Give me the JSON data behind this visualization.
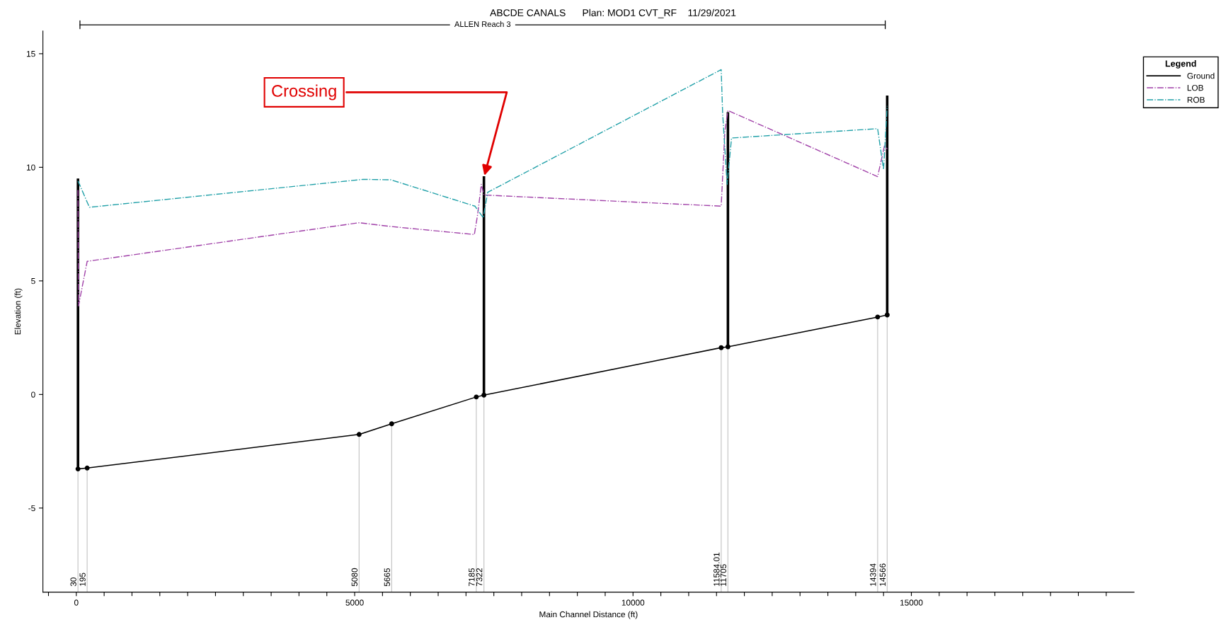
{
  "chart_data": {
    "type": "line",
    "title": "ABCDE CANALS      Plan: MOD1 CVT_RF    11/29/2021",
    "xlabel": "Main Channel Distance (ft)",
    "ylabel": "Elevation (ft)",
    "legend_title": "Legend",
    "legend": "top right",
    "grid": false,
    "xlim": [
      -600,
      19000
    ],
    "ylim": [
      -8.7,
      16
    ],
    "xticks": [
      {
        "value": -500,
        "label": null
      },
      0,
      {
        "value": 500,
        "label": null
      },
      {
        "value": 1000,
        "label": null
      },
      {
        "value": 1500,
        "label": null
      },
      {
        "value": 2000,
        "label": null
      },
      {
        "value": 2500,
        "label": null
      },
      {
        "value": 3000,
        "label": null
      },
      {
        "value": 3500,
        "label": null
      },
      {
        "value": 4000,
        "label": null
      },
      {
        "value": 4500,
        "label": null
      },
      5000,
      {
        "value": 5500,
        "label": null
      },
      {
        "value": 6000,
        "label": null
      },
      {
        "value": 6500,
        "label": null
      },
      {
        "value": 7000,
        "label": null
      },
      {
        "value": 7500,
        "label": null
      },
      {
        "value": 8000,
        "label": null
      },
      {
        "value": 8500,
        "label": null
      },
      {
        "value": 9000,
        "label": null
      },
      {
        "value": 9500,
        "label": null
      },
      10000,
      {
        "value": 10500,
        "label": null
      },
      {
        "value": 11000,
        "label": null
      },
      {
        "value": 11500,
        "label": null
      },
      {
        "value": 12000,
        "label": null
      },
      {
        "value": 12500,
        "label": null
      },
      {
        "value": 13000,
        "label": null
      },
      {
        "value": 13500,
        "label": null
      },
      {
        "value": 14000,
        "label": null
      },
      {
        "value": 14500,
        "label": null
      },
      15000,
      {
        "value": 15500,
        "label": null
      },
      {
        "value": 16000,
        "label": null
      },
      {
        "value": 16500,
        "label": null
      },
      {
        "value": 17000,
        "label": null
      },
      {
        "value": 17500,
        "label": null
      },
      {
        "value": 18000,
        "label": null
      },
      {
        "value": 18500,
        "label": null
      }
    ],
    "yticks": [
      -5,
      0,
      5,
      10,
      15
    ],
    "series": [
      {
        "name": "Ground",
        "color": "#000000",
        "marker": "circle",
        "line_style": "solid",
        "x": [
          30,
          195,
          5080,
          5665,
          7185,
          7322,
          11584.01,
          11705,
          14394,
          14566
        ],
        "values": [
          -3.28,
          -3.24,
          -1.76,
          -1.29,
          -0.11,
          -0.03,
          2.06,
          2.1,
          3.41,
          3.5
        ]
      },
      {
        "color": "#000000",
        "marker": "none",
        "line_style": "solid",
        "x": [
          30,
          30,
          null,
          7322,
          7322,
          null,
          11705,
          11705,
          null,
          14566,
          14566
        ],
        "values": [
          -3.28,
          9.45,
          null,
          -0.03,
          9.55,
          null,
          2.1,
          12.37,
          null,
          3.5,
          13.1
        ]
      },
      {
        "name": "LOB",
        "color": "#a040a8",
        "marker": "none",
        "line_style": "dashdot",
        "x": [
          30,
          40,
          195,
          5080,
          5665,
          7150,
          7210,
          7275,
          7322,
          11584.01,
          11650,
          11705,
          14394,
          14520,
          14566
        ],
        "values": [
          9.0,
          3.9,
          5.86,
          7.56,
          7.39,
          7.04,
          7.94,
          9.25,
          8.78,
          8.29,
          11.6,
          12.5,
          9.59,
          10.98,
          10.8
        ]
      },
      {
        "name": "ROB",
        "color": "#20a0a8",
        "marker": "none",
        "line_style": "dashdot",
        "x": [
          30,
          235,
          5150,
          5650,
          7160,
          7310,
          7390,
          11584.01,
          11610,
          11690,
          11770,
          14394,
          14500,
          14566
        ],
        "values": [
          9.4,
          8.24,
          9.47,
          9.45,
          8.29,
          7.78,
          8.9,
          14.3,
          12.37,
          9.25,
          11.29,
          11.7,
          9.9,
          12.7
        ]
      }
    ],
    "ref_lines": [
      {
        "axis": "x",
        "value": 30,
        "label": "30",
        "color": "#c8c8c8"
      },
      {
        "axis": "x",
        "value": 195,
        "label": "195",
        "color": "#c8c8c8"
      },
      {
        "axis": "x",
        "value": 5080,
        "label": "5080",
        "color": "#c8c8c8"
      },
      {
        "axis": "x",
        "value": 5665,
        "label": "5665",
        "color": "#c8c8c8"
      },
      {
        "axis": "x",
        "value": 7185,
        "label": "7185",
        "color": "#c8c8c8"
      },
      {
        "axis": "x",
        "value": 7322,
        "label": "7322",
        "color": "#c8c8c8"
      },
      {
        "axis": "x",
        "value": 11584.01,
        "label": "11584.01",
        "color": "#c8c8c8"
      },
      {
        "axis": "x",
        "value": 11705,
        "label": "11705",
        "color": "#c8c8c8"
      },
      {
        "axis": "x",
        "value": 14394,
        "label": "14394",
        "color": "#c8c8c8"
      },
      {
        "axis": "x",
        "value": 14566,
        "label": "14566",
        "color": "#c8c8c8"
      }
    ],
    "annotations": [
      "ALLEN Reach 3",
      {
        "text": "Crossing",
        "x": 7322,
        "y": 9.55
      }
    ]
  }
}
